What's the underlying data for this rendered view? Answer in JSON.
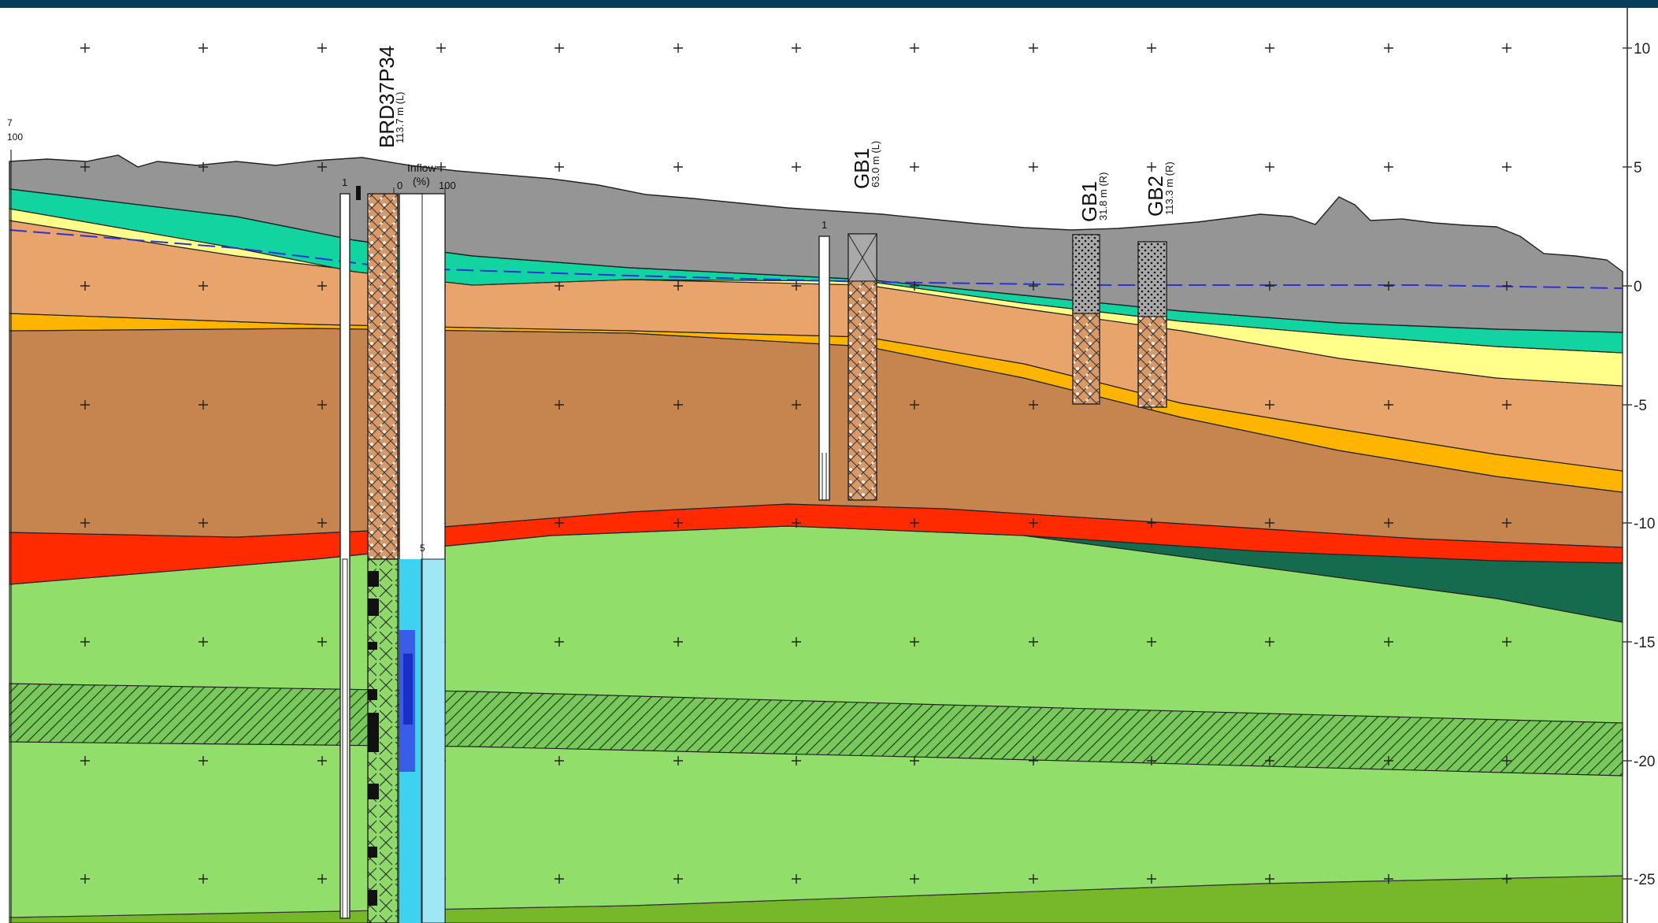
{
  "colors": {
    "header_bar": "#053f5c",
    "topsoil_grey": "#959595",
    "teal_layer": "#12d4a0",
    "yellow_layer": "#ffff8a",
    "light_orange_layer": "#e9a46c",
    "amber_band": "#ffb400",
    "brown_layer": "#c6854e",
    "red_band": "#ff2a00",
    "dark_green_wedge": "#146b4d",
    "light_green_rock": "#92de6a",
    "hatched_band": "#78c85c",
    "bottom_green": "#77b82a",
    "water_table_line": "#2b33d6"
  },
  "elevation_axis": {
    "ticks": [
      "10",
      "5",
      "0",
      "-5",
      "-10",
      "-15",
      "-20",
      "-25"
    ]
  },
  "left_edge": {
    "label_top": "7",
    "label_bottom": "100"
  },
  "boreholes": [
    {
      "name": "BRD37P34",
      "offset": "113.7 m (L)",
      "column_number": "1",
      "inflow_title": "Inflow",
      "inflow_unit": "(%)",
      "inflow_min": "0",
      "inflow_max": "100",
      "inflow_mark": "5"
    },
    {
      "name": "GB1",
      "offset": "63.0 m (L)",
      "column_number": "1"
    },
    {
      "name": "GB1",
      "offset": "31.8 m (R)"
    },
    {
      "name": "GB2",
      "offset": "113.3 m (R)"
    }
  ]
}
